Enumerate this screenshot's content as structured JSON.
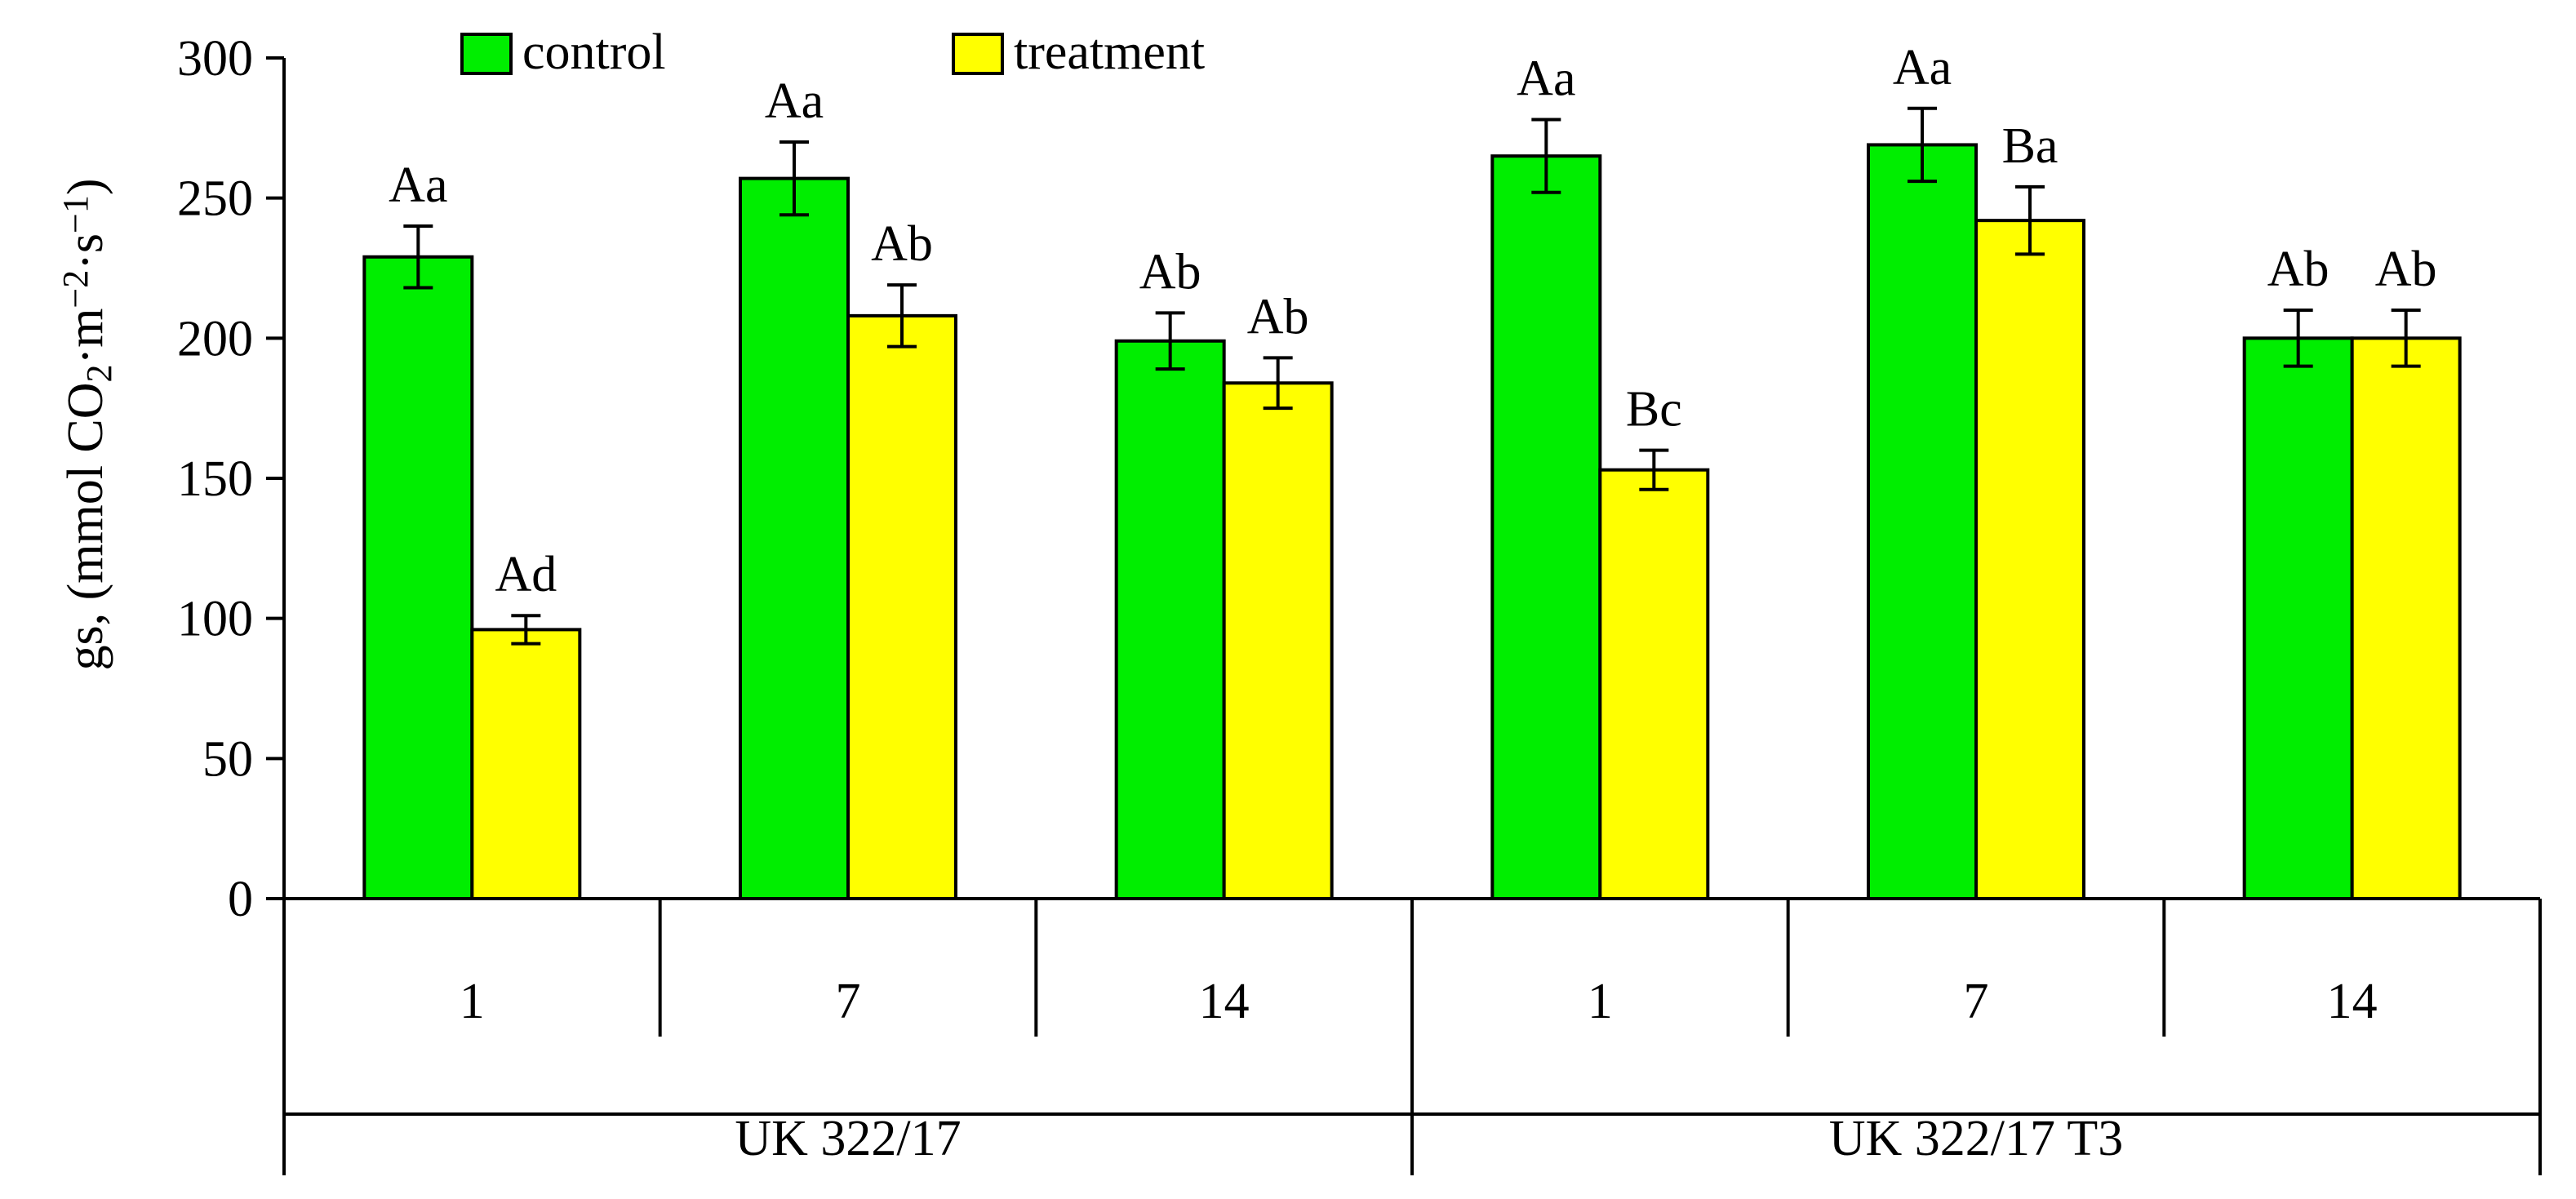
{
  "chart_data": {
    "type": "bar",
    "title": "",
    "ylabel_parts": [
      "gs, (mmol CO",
      "2",
      "·m",
      "−2",
      "·s",
      "−1",
      ")"
    ],
    "ylim": [
      0,
      300
    ],
    "yticks": [
      0,
      50,
      100,
      150,
      200,
      250,
      300
    ],
    "groups": [
      {
        "label": "UK 322/17",
        "categories": [
          "1",
          "7",
          "14"
        ]
      },
      {
        "label": "UK 322/17 T3",
        "categories": [
          "1",
          "7",
          "14"
        ]
      }
    ],
    "series": [
      {
        "name": "control",
        "color": "#00ee00",
        "values": [
          229,
          257,
          199,
          265,
          269,
          200
        ],
        "errors": [
          11,
          13,
          10,
          13,
          13,
          10
        ],
        "labels": [
          "Aa",
          "Aa",
          "Ab",
          "Aa",
          "Aa",
          "Ab"
        ]
      },
      {
        "name": "treatment",
        "color": "#ffff00",
        "values": [
          96,
          208,
          184,
          153,
          242,
          200
        ],
        "errors": [
          5,
          11,
          9,
          7,
          12,
          10
        ],
        "labels": [
          "Ad",
          "Ab",
          "Ab",
          "Bc",
          "Ba",
          "Ab"
        ]
      }
    ],
    "legend": {
      "position": "top",
      "entries": [
        "control",
        "treatment"
      ]
    }
  }
}
